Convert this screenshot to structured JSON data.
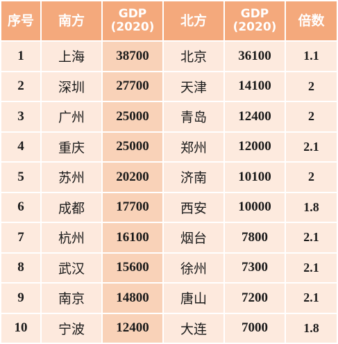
{
  "headers": {
    "index": "序号",
    "south": "南方",
    "south_gdp_line1": "GDP",
    "south_gdp_line2": "(2020)",
    "north": "北方",
    "north_gdp_line1": "GDP",
    "north_gdp_line2": "(2020)",
    "ratio": "倍数"
  },
  "rows": [
    {
      "index": "1",
      "south": "上海",
      "south_gdp": "38700",
      "north": "北京",
      "north_gdp": "36100",
      "ratio": "1.1"
    },
    {
      "index": "2",
      "south": "深圳",
      "south_gdp": "27700",
      "north": "天津",
      "north_gdp": "14100",
      "ratio": "2"
    },
    {
      "index": "3",
      "south": "广州",
      "south_gdp": "25000",
      "north": "青岛",
      "north_gdp": "12400",
      "ratio": "2"
    },
    {
      "index": "4",
      "south": "重庆",
      "south_gdp": "25000",
      "north": "郑州",
      "north_gdp": "12000",
      "ratio": "2.1"
    },
    {
      "index": "5",
      "south": "苏州",
      "south_gdp": "20200",
      "north": "济南",
      "north_gdp": "10100",
      "ratio": "2"
    },
    {
      "index": "6",
      "south": "成都",
      "south_gdp": "17700",
      "north": "西安",
      "north_gdp": "10000",
      "ratio": "1.8"
    },
    {
      "index": "7",
      "south": "杭州",
      "south_gdp": "16100",
      "north": "烟台",
      "north_gdp": "7800",
      "ratio": "2.1"
    },
    {
      "index": "8",
      "south": "武汉",
      "south_gdp": "15600",
      "north": "徐州",
      "north_gdp": "7300",
      "ratio": "2.1"
    },
    {
      "index": "9",
      "south": "南京",
      "south_gdp": "14800",
      "north": "唐山",
      "north_gdp": "7200",
      "ratio": "2.1"
    },
    {
      "index": "10",
      "south": "宁波",
      "south_gdp": "12400",
      "north": "大连",
      "north_gdp": "7000",
      "ratio": "1.8"
    }
  ],
  "colors": {
    "header_bg": "#f4a97c",
    "header_text": "#ffffff",
    "cell_light": "#fdeade",
    "cell_gdp_south": "#f9d2b8"
  }
}
